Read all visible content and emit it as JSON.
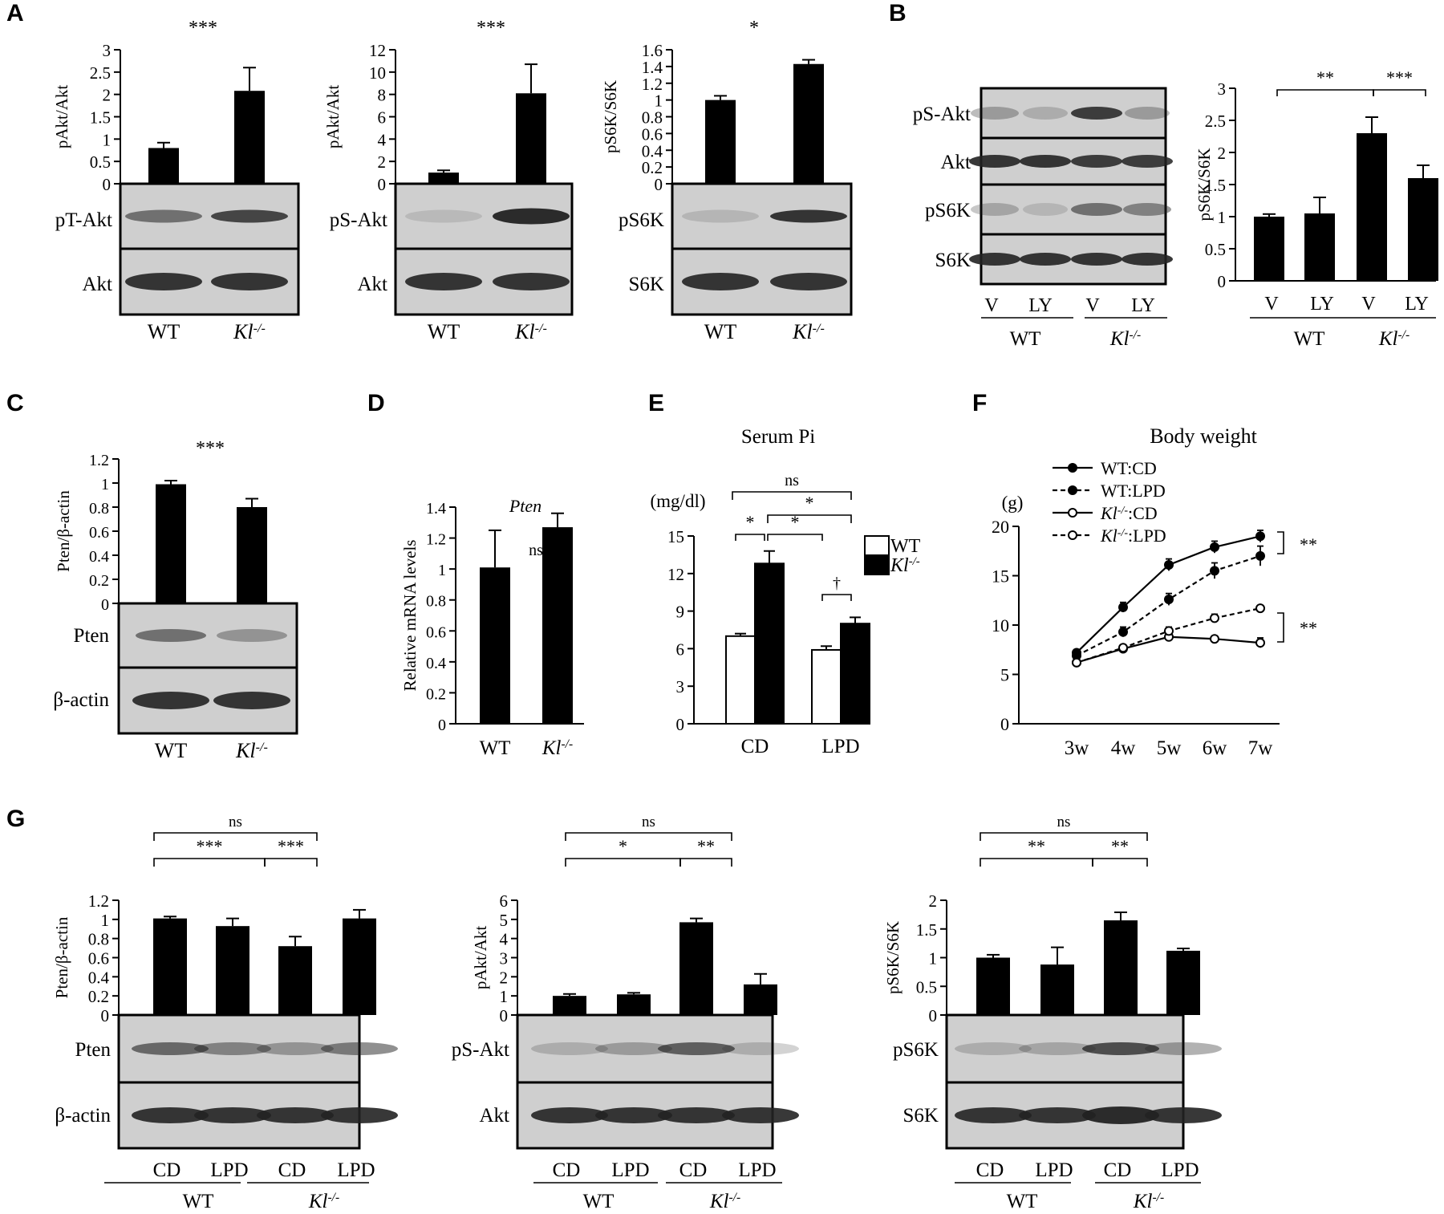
{
  "colors": {
    "bar": "#000000",
    "open_bar": "#ffffff",
    "blot_bg": "#cfcfcf",
    "band": "#333333"
  },
  "panel_letters": [
    "A",
    "B",
    "C",
    "D",
    "E",
    "F",
    "G"
  ],
  "chart_data": [
    {
      "id": "A1",
      "type": "bar",
      "panel": "A",
      "categories": [
        "WT",
        "Kl-/-"
      ],
      "values": [
        0.8,
        2.08
      ],
      "errors": [
        0.12,
        0.52
      ],
      "ylabel": "pAkt/Akt",
      "ylim": [
        0,
        3
      ],
      "yticks": [
        "0",
        "0.5",
        "1",
        "1.5",
        "2",
        "2.5",
        "3"
      ],
      "significance": "***",
      "blots": [
        "pT-Akt",
        "Akt"
      ],
      "grid": false
    },
    {
      "id": "A2",
      "type": "bar",
      "panel": "A",
      "categories": [
        "WT",
        "Kl-/-"
      ],
      "values": [
        1.0,
        8.1
      ],
      "errors": [
        0.2,
        2.6
      ],
      "ylabel": "pAkt/Akt",
      "ylim": [
        0,
        12
      ],
      "yticks": [
        "0",
        "2",
        "4",
        "6",
        "8",
        "10",
        "12"
      ],
      "significance": "***",
      "blots": [
        "pS-Akt",
        "Akt"
      ],
      "grid": false
    },
    {
      "id": "A3",
      "type": "bar",
      "panel": "A",
      "categories": [
        "WT",
        "Kl-/-"
      ],
      "values": [
        1.0,
        1.43
      ],
      "errors": [
        0.05,
        0.05
      ],
      "ylabel": "pS6K/S6K",
      "ylim": [
        0,
        1.6
      ],
      "yticks": [
        "0",
        "0.2",
        "0.4",
        "0.6",
        "0.8",
        "1",
        "1.2",
        "1.4",
        "1.6"
      ],
      "significance": "*",
      "blots": [
        "pS6K",
        "S6K"
      ],
      "grid": false
    },
    {
      "id": "B",
      "type": "bar",
      "panel": "B",
      "categories": [
        "V",
        "LY",
        "V",
        "LY"
      ],
      "groups": [
        "WT",
        "Kl-/-"
      ],
      "values": [
        1.0,
        1.05,
        2.3,
        1.6
      ],
      "errors": [
        0.04,
        0.25,
        0.25,
        0.2
      ],
      "ylabel": "pS6K/S6K",
      "ylim": [
        0,
        3
      ],
      "yticks": [
        "0",
        "0.5",
        "1",
        "1.5",
        "2",
        "2.5",
        "3"
      ],
      "brackets": [
        {
          "from": "WT V",
          "to": "Kl-/- V",
          "label": "**"
        },
        {
          "from": "Kl-/- V",
          "to": "Kl-/- LY",
          "label": "***"
        }
      ],
      "blots": [
        "pS-Akt",
        "Akt",
        "pS6K",
        "S6K"
      ],
      "grid": false
    },
    {
      "id": "C",
      "type": "bar",
      "panel": "C",
      "categories": [
        "WT",
        "Kl-/-"
      ],
      "values": [
        0.99,
        0.8
      ],
      "errors": [
        0.03,
        0.07
      ],
      "ylabel": "Pten/β-actin",
      "ylim": [
        0,
        1.2
      ],
      "yticks": [
        "0",
        "0.2",
        "0.4",
        "0.6",
        "0.8",
        "1",
        "1.2"
      ],
      "significance": "***",
      "blots": [
        "Pten",
        "β-actin"
      ],
      "grid": false
    },
    {
      "id": "D",
      "type": "bar",
      "panel": "D",
      "title": "Pten",
      "categories": [
        "WT",
        "Kl-/-"
      ],
      "values": [
        1.01,
        1.27
      ],
      "errors": [
        0.24,
        0.09
      ],
      "ylabel": "Relative mRNA levels",
      "ylim": [
        0,
        1.4
      ],
      "yticks": [
        "0",
        "0.2",
        "0.4",
        "0.6",
        "0.8",
        "1",
        "1.2",
        "1.4"
      ],
      "significance": "ns",
      "grid": false
    },
    {
      "id": "E",
      "type": "bar",
      "panel": "E",
      "title": "Serum Pi",
      "unit": "(mg/dl)",
      "categories": [
        "CD",
        "LPD"
      ],
      "series": [
        {
          "name": "WT",
          "values": [
            7.0,
            5.9
          ],
          "errors": [
            0.2,
            0.3
          ],
          "fill": "open"
        },
        {
          "name": "Kl-/-",
          "values": [
            12.8,
            8.0
          ],
          "errors": [
            1.0,
            0.5
          ],
          "fill": "solid"
        }
      ],
      "ylim": [
        0,
        15
      ],
      "yticks": [
        "0",
        "3",
        "6",
        "9",
        "12",
        "15"
      ],
      "brackets": [
        {
          "label": "ns"
        },
        {
          "label": "*"
        },
        {
          "label": "*"
        },
        {
          "label": "*"
        },
        {
          "label": "†"
        }
      ],
      "legend": "top-right",
      "grid": false
    },
    {
      "id": "F",
      "type": "line",
      "panel": "F",
      "title": "Body weight",
      "unit": "(g)",
      "x": [
        "3w",
        "4w",
        "5w",
        "6w",
        "7w"
      ],
      "series": [
        {
          "name": "WT:CD",
          "values": [
            7.2,
            11.8,
            16.1,
            17.9,
            19.0
          ],
          "errors": [
            0.3,
            0.5,
            0.6,
            0.6,
            0.6
          ],
          "marker": "filled",
          "dash": false
        },
        {
          "name": "WT:LPD",
          "values": [
            6.9,
            9.3,
            12.6,
            15.5,
            17.0
          ],
          "errors": [
            0.3,
            0.5,
            0.6,
            0.8,
            1.0
          ],
          "marker": "filled",
          "dash": true
        },
        {
          "name": "Kl-/-:CD",
          "values": [
            6.2,
            7.6,
            8.8,
            8.6,
            8.2
          ],
          "errors": [
            0.2,
            0.3,
            0.3,
            0.3,
            0.5
          ],
          "marker": "open",
          "dash": false
        },
        {
          "name": "Kl-/-:LPD",
          "values": [
            6.2,
            7.7,
            9.4,
            10.7,
            11.7
          ],
          "errors": [
            0.2,
            0.3,
            0.4,
            0.4,
            0.3
          ],
          "marker": "open",
          "dash": true
        }
      ],
      "ylim": [
        0,
        20
      ],
      "yticks": [
        "0",
        "5",
        "10",
        "15",
        "20"
      ],
      "significance": [
        "**",
        "**"
      ],
      "legend": "top-left",
      "grid": false
    },
    {
      "id": "G1",
      "type": "bar",
      "panel": "G",
      "categories": [
        "CD",
        "LPD",
        "CD",
        "LPD"
      ],
      "groups": [
        "WT",
        "Kl-/-"
      ],
      "values": [
        1.01,
        0.93,
        0.72,
        1.01
      ],
      "errors": [
        0.02,
        0.08,
        0.1,
        0.09
      ],
      "ylabel": "Pten/β-actin",
      "ylim": [
        0,
        1.2
      ],
      "yticks": [
        "0",
        "0.2",
        "0.4",
        "0.6",
        "0.8",
        "1",
        "1.2"
      ],
      "brackets": [
        {
          "label": "ns"
        },
        {
          "label": "***"
        },
        {
          "label": "***"
        }
      ],
      "blots": [
        "Pten",
        "β-actin"
      ],
      "grid": false
    },
    {
      "id": "G2",
      "type": "bar",
      "panel": "G",
      "categories": [
        "CD",
        "LPD",
        "CD",
        "LPD"
      ],
      "groups": [
        "WT",
        "Kl-/-"
      ],
      "values": [
        1.0,
        1.08,
        4.85,
        1.6
      ],
      "errors": [
        0.1,
        0.08,
        0.2,
        0.55
      ],
      "ylabel": "pAkt/Akt",
      "ylim": [
        0,
        6
      ],
      "yticks": [
        "0",
        "1",
        "2",
        "3",
        "4",
        "5",
        "6"
      ],
      "brackets": [
        {
          "label": "ns"
        },
        {
          "label": "*"
        },
        {
          "label": "**"
        }
      ],
      "blots": [
        "pS-Akt",
        "Akt"
      ],
      "grid": false
    },
    {
      "id": "G3",
      "type": "bar",
      "panel": "G",
      "categories": [
        "CD",
        "LPD",
        "CD",
        "LPD"
      ],
      "groups": [
        "WT",
        "Kl-/-"
      ],
      "values": [
        1.0,
        0.88,
        1.65,
        1.12
      ],
      "errors": [
        0.05,
        0.3,
        0.14,
        0.04
      ],
      "ylabel": "pS6K/S6K",
      "ylim": [
        0,
        2
      ],
      "yticks": [
        "0",
        "0.5",
        "1",
        "1.5",
        "2"
      ],
      "brackets": [
        {
          "label": "ns"
        },
        {
          "label": "**"
        },
        {
          "label": "**"
        }
      ],
      "blots": [
        "pS6K",
        "S6K"
      ],
      "grid": false
    }
  ]
}
